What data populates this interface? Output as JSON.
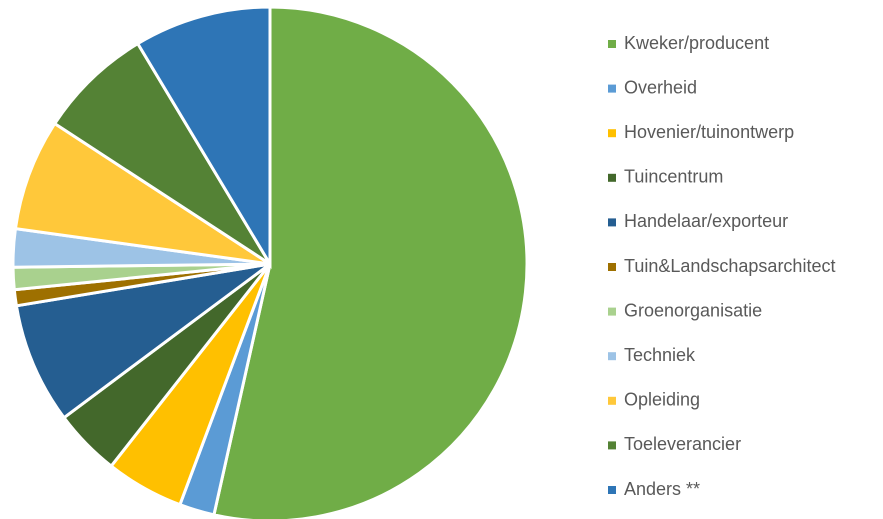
{
  "chart_data": {
    "type": "pie",
    "categories": [
      "Kweker/producent",
      "Overheid",
      "Hovenier/tuinontwerp",
      "Tuincentrum",
      "Handelaar/exporteur",
      "Tuin&Landschapsarchitect",
      "Groenorganisatie",
      "Techniek",
      "Opleiding",
      "Toeleverancier",
      "Anders **"
    ],
    "values": [
      53.5,
      2.2,
      4.9,
      4.2,
      7.6,
      1.0,
      1.4,
      2.4,
      7.0,
      7.2,
      8.6
    ],
    "colors": [
      "#70ad47",
      "#5b9bd5",
      "#ffc000",
      "#43682b",
      "#255e91",
      "#9e7000",
      "#a9d18e",
      "#9dc3e6",
      "#ffc83a",
      "#548235",
      "#2e75b6"
    ],
    "legend": "right"
  }
}
